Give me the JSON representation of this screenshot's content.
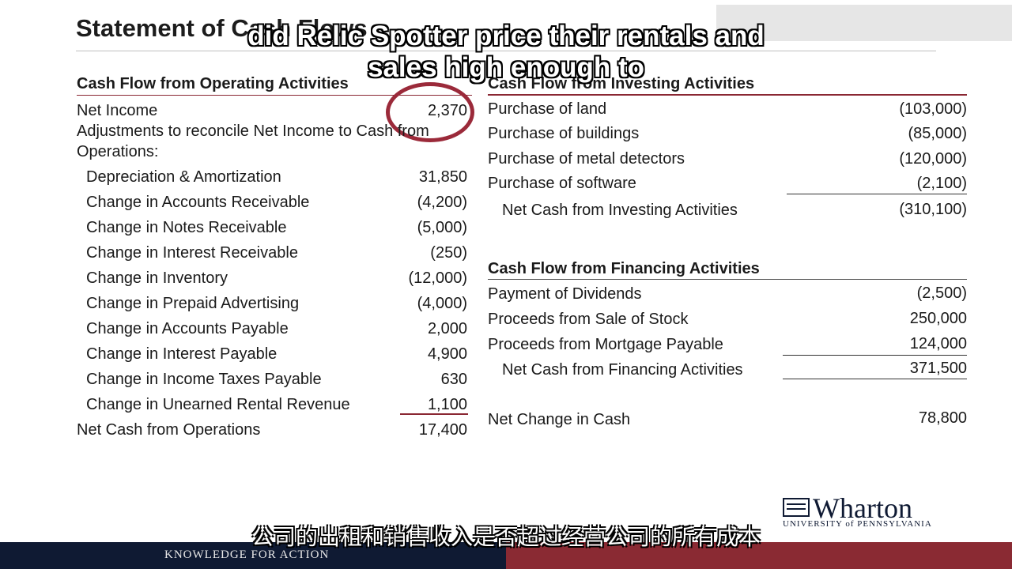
{
  "slide_title": "Statement of Cash Flows",
  "captions": {
    "english_line1": "did Relic Spotter price their rentals and",
    "english_line2": "sales high enough to",
    "chinese": "公司的出租和销售收入是否超过经营公司的所有成本"
  },
  "operating": {
    "heading": "Cash Flow from Operating Activities",
    "net_income_label": "Net Income",
    "net_income_value": "2,370",
    "adjustments_line1": "Adjustments to reconcile Net Income to Cash from",
    "adjustments_line2": "Operations:",
    "items": [
      {
        "label": "Depreciation & Amortization",
        "value": "31,850"
      },
      {
        "label": "Change in Accounts Receivable",
        "value": "(4,200)"
      },
      {
        "label": "Change in Notes Receivable",
        "value": "(5,000)"
      },
      {
        "label": "Change in Interest Receivable",
        "value": "(250)"
      },
      {
        "label": "Change in Inventory",
        "value": "(12,000)"
      },
      {
        "label": "Change in Prepaid Advertising",
        "value": "(4,000)"
      },
      {
        "label": "Change in Accounts Payable",
        "value": "2,000"
      },
      {
        "label": "Change in Interest Payable",
        "value": "4,900"
      },
      {
        "label": "Change in Income Taxes Payable",
        "value": "630"
      },
      {
        "label": "Change in Unearned Rental Revenue",
        "value": "1,100"
      }
    ],
    "total_label": "Net Cash from Operations",
    "total_value": "17,400"
  },
  "investing": {
    "heading": "Cash Flow from Investing Activities",
    "items": [
      {
        "label": "Purchase of land",
        "value": "(103,000)"
      },
      {
        "label": "Purchase of buildings",
        "value": "(85,000)"
      },
      {
        "label": "Purchase of metal detectors",
        "value": "(120,000)"
      },
      {
        "label": "Purchase of software",
        "value": "(2,100)"
      }
    ],
    "total_label": "Net Cash from Investing Activities",
    "total_value": "(310,100)"
  },
  "financing": {
    "heading": "Cash Flow from Financing Activities",
    "items": [
      {
        "label": "Payment of Dividends",
        "value": "(2,500)"
      },
      {
        "label": "Proceeds from Sale of Stock",
        "value": "250,000"
      },
      {
        "label": "Proceeds from Mortgage Payable",
        "value": "124,000"
      }
    ],
    "total_label": "Net Cash from Financing Activities",
    "total_value": "371,500"
  },
  "net_change": {
    "label": "Net Change in Cash",
    "value": "78,800"
  },
  "branding": {
    "logo_name": "Wharton",
    "logo_sub": "UNIVERSITY of PENNSYLVANIA",
    "tagline": "KNOWLEDGE FOR ACTION"
  },
  "colors": {
    "accent": "#8a2a33",
    "navy": "#0f1a33",
    "circle": "#9b2a3a"
  }
}
